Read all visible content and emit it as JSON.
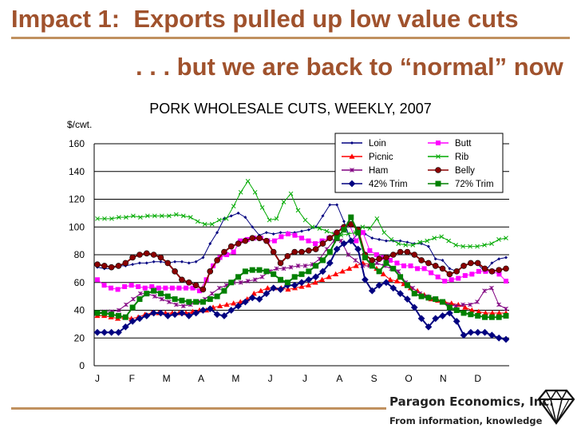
{
  "slide": {
    "title": "Impact 1:  Exports pulled up low value cuts",
    "subtitle": ". . . but we are back to “normal” now",
    "company": "Paragon Economics, Inc.",
    "tagline": "From information, knowledge"
  },
  "chart_data": {
    "type": "line",
    "title": "PORK WHOLESALE CUTS, WEEKLY, 2007",
    "ylabel": "$/cwt.",
    "xlabel": "",
    "ylim": [
      0,
      160
    ],
    "yticks": [
      0,
      20,
      40,
      60,
      80,
      100,
      120,
      140,
      160
    ],
    "month_labels": [
      "J",
      "F",
      "M",
      "A",
      "M",
      "J",
      "J",
      "A",
      "S",
      "O",
      "N",
      "D"
    ],
    "x_unit": "week of 2007",
    "grid": true,
    "legend_position": "top-right",
    "series": [
      {
        "name": "Loin",
        "color": "#000080",
        "marker": "diamond-small",
        "size": 3.2,
        "values": [
          71,
          70,
          70,
          72,
          72,
          73,
          74,
          74,
          75,
          75,
          74,
          75,
          75,
          74,
          75,
          78,
          88,
          96,
          106,
          108,
          110,
          107,
          100,
          94,
          96,
          95,
          96,
          96,
          96,
          97,
          98,
          100,
          108,
          116,
          116,
          104,
          90,
          95,
          95,
          92,
          91,
          90,
          90,
          90,
          89,
          88,
          88,
          86,
          77,
          76,
          70,
          68,
          72,
          74,
          73,
          68,
          74,
          77,
          78
        ]
      },
      {
        "name": "Butt",
        "color": "#ff00ff",
        "marker": "square",
        "size": 6,
        "values": [
          62,
          58,
          56,
          55,
          57,
          58,
          57,
          56,
          57,
          56,
          56,
          56,
          56,
          56,
          56,
          54,
          62,
          72,
          78,
          80,
          82,
          90,
          91,
          92,
          92,
          90,
          90,
          93,
          95,
          94,
          92,
          90,
          88,
          90,
          92,
          95,
          99,
          102,
          90,
          96,
          83,
          80,
          78,
          76,
          74,
          72,
          72,
          70,
          70,
          67,
          64,
          61,
          62,
          63,
          65,
          66,
          68,
          68,
          68,
          66,
          61
        ]
      },
      {
        "name": "Picnic",
        "color": "#ff0000",
        "marker": "triangle",
        "size": 6,
        "values": [
          36,
          36,
          35,
          34,
          35,
          34,
          35,
          37,
          38,
          38,
          38,
          38,
          38,
          38,
          39,
          40,
          40,
          42,
          43,
          44,
          45,
          46,
          48,
          52,
          54,
          56,
          56,
          56,
          55,
          56,
          57,
          58,
          60,
          62,
          64,
          66,
          68,
          70,
          72,
          74,
          73,
          70,
          66,
          62,
          61,
          59,
          56,
          54,
          51,
          48,
          47,
          46,
          45,
          44,
          42,
          40,
          39,
          38,
          38,
          38,
          38
        ]
      },
      {
        "name": "Rib",
        "color": "#00aa00",
        "marker": "x",
        "size": 5,
        "values": [
          106,
          106,
          106,
          107,
          107,
          108,
          107,
          108,
          108,
          108,
          108,
          109,
          108,
          107,
          104,
          102,
          102,
          105,
          106,
          115,
          125,
          133,
          125,
          114,
          105,
          106,
          118,
          124,
          112,
          105,
          100,
          99,
          97,
          95,
          94,
          95,
          96,
          100,
          99,
          106,
          96,
          91,
          88,
          87,
          87,
          89,
          90,
          92,
          93,
          90,
          87,
          86,
          86,
          86,
          87,
          88,
          91,
          92
        ]
      },
      {
        "name": "Ham",
        "color": "#800080",
        "marker": "star",
        "size": 5,
        "values": [
          38,
          39,
          39,
          40,
          44,
          48,
          52,
          52,
          50,
          48,
          46,
          44,
          43,
          44,
          46,
          48,
          52,
          56,
          58,
          60,
          60,
          61,
          62,
          64,
          68,
          70,
          70,
          71,
          72,
          72,
          73,
          77,
          84,
          90,
          90,
          80,
          76,
          72,
          72,
          74,
          72,
          70,
          68,
          60,
          56,
          52,
          50,
          48,
          46,
          44,
          43,
          44,
          44,
          46,
          54,
          56,
          44,
          41
        ]
      },
      {
        "name": "Belly",
        "color": "#8b0000",
        "marker": "circle",
        "size": 7,
        "values": [
          73,
          72,
          71,
          72,
          74,
          78,
          80,
          81,
          80,
          78,
          74,
          68,
          62,
          60,
          58,
          55,
          68,
          76,
          82,
          86,
          88,
          90,
          92,
          92,
          90,
          82,
          74,
          79,
          82,
          82,
          83,
          84,
          88,
          92,
          96,
          100,
          102,
          98,
          80,
          76,
          77,
          78,
          80,
          82,
          82,
          80,
          76,
          74,
          72,
          70,
          66,
          68,
          72,
          74,
          74,
          70,
          68,
          69,
          70
        ]
      },
      {
        "name": "42% Trim",
        "color": "#000080",
        "marker": "diamond",
        "size": 7,
        "values": [
          24,
          24,
          24,
          24,
          28,
          32,
          34,
          36,
          38,
          38,
          36,
          37,
          38,
          36,
          38,
          40,
          41,
          37,
          36,
          40,
          43,
          46,
          49,
          48,
          52,
          56,
          55,
          58,
          58,
          60,
          62,
          64,
          68,
          74,
          84,
          88,
          90,
          84,
          62,
          54,
          58,
          60,
          56,
          52,
          48,
          42,
          34,
          28,
          34,
          36,
          38,
          32,
          22,
          24,
          24,
          24,
          22,
          20,
          19
        ]
      },
      {
        "name": "72% Trim",
        "color": "#008000",
        "marker": "square",
        "size": 7,
        "values": [
          38,
          38,
          37,
          36,
          35,
          42,
          48,
          52,
          54,
          52,
          50,
          48,
          47,
          46,
          46,
          46,
          48,
          50,
          54,
          60,
          64,
          68,
          69,
          69,
          68,
          66,
          62,
          60,
          64,
          66,
          68,
          72,
          76,
          82,
          92,
          98,
          107,
          96,
          78,
          72,
          68,
          74,
          70,
          64,
          58,
          52,
          50,
          49,
          48,
          46,
          42,
          40,
          38,
          37,
          36,
          35,
          35,
          35,
          36
        ]
      }
    ]
  }
}
